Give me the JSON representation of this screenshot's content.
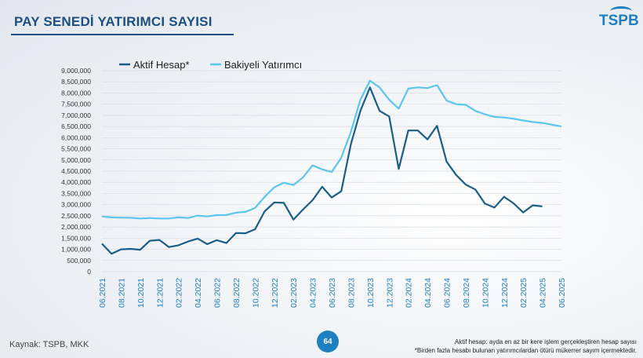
{
  "header": {
    "title": "PAY SENEDİ YATIRIMCI SAYISI",
    "logo_text": "TSPB"
  },
  "footer": {
    "source": "Kaynak: TSPB, MKK",
    "page_number": "64",
    "note1": "Aktif hesap: ayda en az bir kere işlem gerçekleştiren hesap sayısı",
    "note2": "*Birden fazla hesabı bulunan yatırımcılardan ötürü mükerrer sayım içermektedir."
  },
  "colors": {
    "title": "#1e4f82",
    "aktif": "#1b5e8c",
    "bakiyeli": "#5bc6ee",
    "accent": "#1e7fc1"
  },
  "chart_data": {
    "type": "line",
    "x": [
      "06.2021",
      "07.2021",
      "08.2021",
      "09.2021",
      "10.2021",
      "11.2021",
      "12.2021",
      "01.2022",
      "02.2022",
      "03.2022",
      "04.2022",
      "05.2022",
      "06.2022",
      "07.2022",
      "08.2022",
      "09.2022",
      "10.2022",
      "11.2022",
      "12.2022",
      "01.2023",
      "02.2023",
      "03.2023",
      "04.2023",
      "05.2023",
      "06.2023",
      "07.2023",
      "08.2023",
      "09.2023",
      "10.2023",
      "11.2023",
      "12.2023",
      "01.2024",
      "02.2024",
      "03.2024",
      "04.2024",
      "05.2024",
      "06.2024",
      "07.2024",
      "08.2024",
      "09.2024",
      "10.2024",
      "11.2024",
      "12.2024",
      "01.2025",
      "02.2025",
      "03.2025",
      "04.2025",
      "05.2025",
      "06.2025"
    ],
    "tick_labels": [
      "06.2021",
      "08.2021",
      "10.2021",
      "12.2021",
      "02.2022",
      "04.2022",
      "06.2022",
      "08.2022",
      "10.2022",
      "12.2022",
      "02.2023",
      "04.2023",
      "06.2023",
      "08.2023",
      "10.2023",
      "12.2023",
      "02.2024",
      "04.2024",
      "06.2024",
      "08.2024",
      "10.2024",
      "12.2024",
      "02.2025",
      "04.2025",
      "06.2025"
    ],
    "series": [
      {
        "name": "Aktif Hesap*",
        "values": [
          1250000,
          800000,
          1000000,
          1020000,
          980000,
          1380000,
          1420000,
          1100000,
          1180000,
          1350000,
          1480000,
          1230000,
          1410000,
          1280000,
          1730000,
          1720000,
          1900000,
          2700000,
          3100000,
          3080000,
          2330000,
          2780000,
          3200000,
          3800000,
          3320000,
          3600000,
          5700000,
          7200000,
          8250000,
          7200000,
          6950000,
          4600000,
          6320000,
          6320000,
          5920000,
          6530000,
          4930000,
          4330000,
          3900000,
          3680000,
          3050000,
          2870000,
          3350000,
          3060000,
          2650000,
          2970000,
          2920000,
          null,
          null
        ]
      },
      {
        "name": "Bakiyeli Yatırımcı",
        "values": [
          2470000,
          2430000,
          2420000,
          2410000,
          2380000,
          2400000,
          2380000,
          2380000,
          2430000,
          2400000,
          2510000,
          2470000,
          2530000,
          2540000,
          2640000,
          2680000,
          2850000,
          3350000,
          3780000,
          3980000,
          3880000,
          4220000,
          4760000,
          4580000,
          4460000,
          5100000,
          6250000,
          7700000,
          8550000,
          8250000,
          7700000,
          7300000,
          8200000,
          8250000,
          8220000,
          8350000,
          7660000,
          7500000,
          7470000,
          7200000,
          7050000,
          6930000,
          6900000,
          6850000,
          6770000,
          6700000,
          6660000,
          6580000,
          6500000
        ]
      }
    ],
    "yticks": [
      "0",
      "500,000",
      "1,000,000",
      "1,500,000",
      "2,000,000",
      "2,500,000",
      "3,000,000",
      "3,500,000",
      "4,000,000",
      "4,500,000",
      "5,000,000",
      "5,500,000",
      "6,000,000",
      "6,500,000",
      "7,000,000",
      "7,500,000",
      "8,000,000",
      "8,500,000",
      "9,000,000"
    ],
    "ylim": [
      0,
      9000000
    ],
    "grid": true,
    "legend": "top-left"
  }
}
